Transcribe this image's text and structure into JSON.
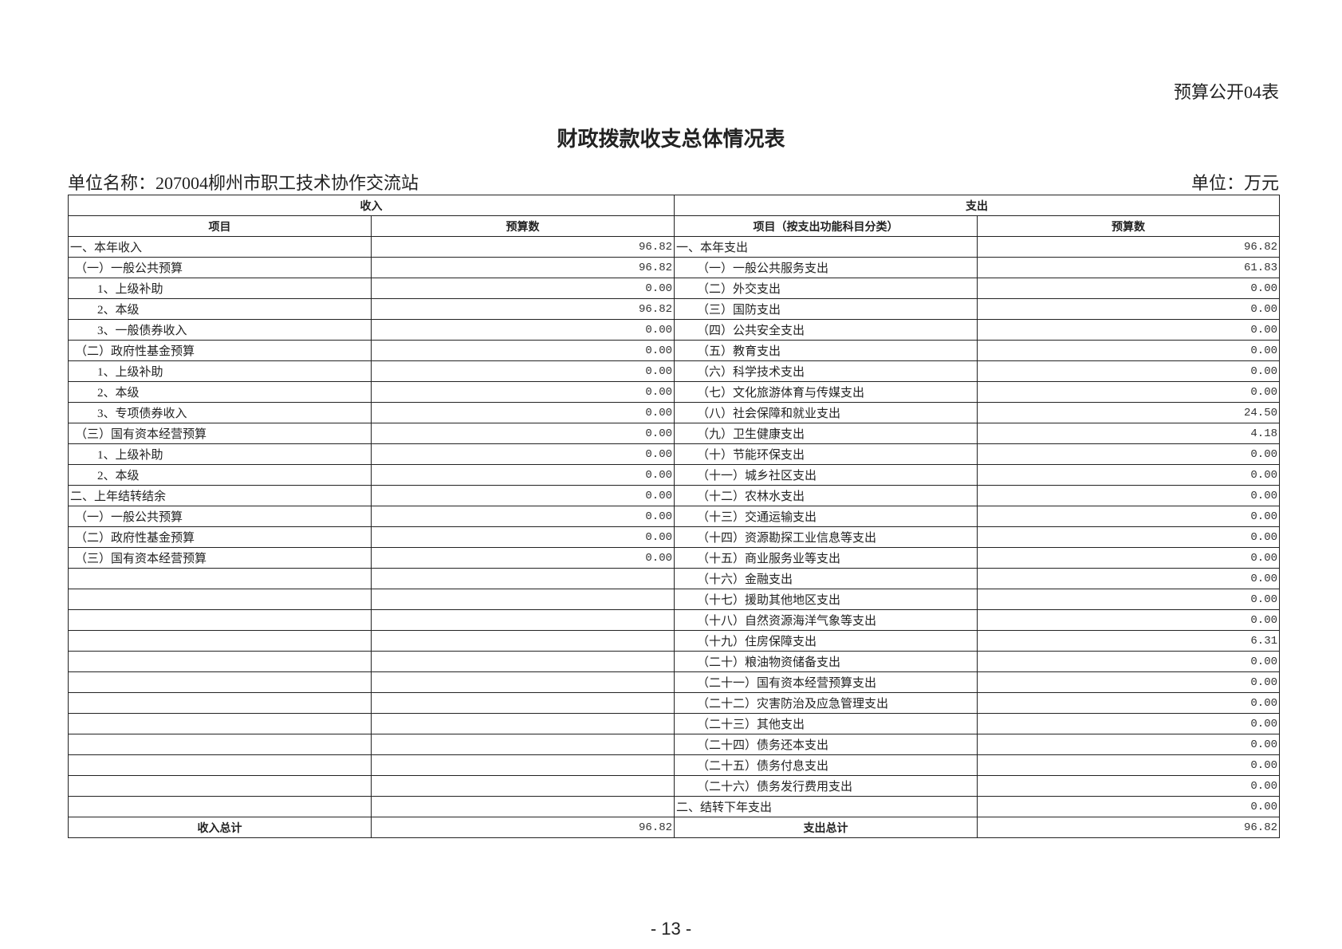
{
  "form_code": "预算公开04表",
  "title": "财政拨款收支总体情况表",
  "unit_name": "单位名称：207004柳州市职工技术协作交流站",
  "unit": "单位：万元",
  "headers": {
    "income": "收入",
    "expense": "支出",
    "income_item": "项目",
    "income_budget": "预算数",
    "expense_item": "项目（按支出功能科目分类）",
    "expense_budget": "预算数"
  },
  "rows": [
    {
      "in_item": "一、本年收入",
      "in_level": 0,
      "in_val": "96.82",
      "ex_item": "一、本年支出",
      "ex_level": 0,
      "ex_val": "96.82"
    },
    {
      "in_item": "（一）一般公共预算",
      "in_level": 1,
      "in_val": "96.82",
      "ex_item": "（一）一般公共服务支出",
      "ex_level": 1,
      "ex_val": "61.83"
    },
    {
      "in_item": "1、上级补助",
      "in_level": 2,
      "in_val": "0.00",
      "ex_item": "（二）外交支出",
      "ex_level": 1,
      "ex_val": "0.00"
    },
    {
      "in_item": "2、本级",
      "in_level": 2,
      "in_val": "96.82",
      "ex_item": "（三）国防支出",
      "ex_level": 1,
      "ex_val": "0.00"
    },
    {
      "in_item": "3、一般债券收入",
      "in_level": 2,
      "in_val": "0.00",
      "ex_item": "（四）公共安全支出",
      "ex_level": 1,
      "ex_val": "0.00"
    },
    {
      "in_item": "（二）政府性基金预算",
      "in_level": 1,
      "in_val": "0.00",
      "ex_item": "（五）教育支出",
      "ex_level": 1,
      "ex_val": "0.00"
    },
    {
      "in_item": "1、上级补助",
      "in_level": 2,
      "in_val": "0.00",
      "ex_item": "（六）科学技术支出",
      "ex_level": 1,
      "ex_val": "0.00"
    },
    {
      "in_item": "2、本级",
      "in_level": 2,
      "in_val": "0.00",
      "ex_item": "（七）文化旅游体育与传媒支出",
      "ex_level": 1,
      "ex_val": "0.00"
    },
    {
      "in_item": "3、专项债券收入",
      "in_level": 2,
      "in_val": "0.00",
      "ex_item": "（八）社会保障和就业支出",
      "ex_level": 1,
      "ex_val": "24.50"
    },
    {
      "in_item": "（三）国有资本经营预算",
      "in_level": 1,
      "in_val": "0.00",
      "ex_item": "（九）卫生健康支出",
      "ex_level": 1,
      "ex_val": "4.18"
    },
    {
      "in_item": "1、上级补助",
      "in_level": 2,
      "in_val": "0.00",
      "ex_item": "（十）节能环保支出",
      "ex_level": 1,
      "ex_val": "0.00"
    },
    {
      "in_item": "2、本级",
      "in_level": 2,
      "in_val": "0.00",
      "ex_item": "（十一）城乡社区支出",
      "ex_level": 1,
      "ex_val": "0.00"
    },
    {
      "in_item": "二、上年结转结余",
      "in_level": 0,
      "in_val": "0.00",
      "ex_item": "（十二）农林水支出",
      "ex_level": 1,
      "ex_val": "0.00"
    },
    {
      "in_item": "（一）一般公共预算",
      "in_level": 1,
      "in_val": "0.00",
      "ex_item": "（十三）交通运输支出",
      "ex_level": 1,
      "ex_val": "0.00"
    },
    {
      "in_item": "（二）政府性基金预算",
      "in_level": 1,
      "in_val": "0.00",
      "ex_item": "（十四）资源勘探工业信息等支出",
      "ex_level": 1,
      "ex_val": "0.00"
    },
    {
      "in_item": "（三）国有资本经营预算",
      "in_level": 1,
      "in_val": "0.00",
      "ex_item": "（十五）商业服务业等支出",
      "ex_level": 1,
      "ex_val": "0.00"
    },
    {
      "in_item": "",
      "in_level": 0,
      "in_val": "",
      "ex_item": "（十六）金融支出",
      "ex_level": 1,
      "ex_val": "0.00"
    },
    {
      "in_item": "",
      "in_level": 0,
      "in_val": "",
      "ex_item": "（十七）援助其他地区支出",
      "ex_level": 1,
      "ex_val": "0.00"
    },
    {
      "in_item": "",
      "in_level": 0,
      "in_val": "",
      "ex_item": "（十八）自然资源海洋气象等支出",
      "ex_level": 1,
      "ex_val": "0.00"
    },
    {
      "in_item": "",
      "in_level": 0,
      "in_val": "",
      "ex_item": "（十九）住房保障支出",
      "ex_level": 1,
      "ex_val": "6.31"
    },
    {
      "in_item": "",
      "in_level": 0,
      "in_val": "",
      "ex_item": "（二十）粮油物资储备支出",
      "ex_level": 1,
      "ex_val": "0.00"
    },
    {
      "in_item": "",
      "in_level": 0,
      "in_val": "",
      "ex_item": "（二十一）国有资本经营预算支出",
      "ex_level": 1,
      "ex_val": "0.00"
    },
    {
      "in_item": "",
      "in_level": 0,
      "in_val": "",
      "ex_item": "（二十二）灾害防治及应急管理支出",
      "ex_level": 1,
      "ex_val": "0.00"
    },
    {
      "in_item": "",
      "in_level": 0,
      "in_val": "",
      "ex_item": "（二十三）其他支出",
      "ex_level": 1,
      "ex_val": "0.00"
    },
    {
      "in_item": "",
      "in_level": 0,
      "in_val": "",
      "ex_item": "（二十四）债务还本支出",
      "ex_level": 1,
      "ex_val": "0.00"
    },
    {
      "in_item": "",
      "in_level": 0,
      "in_val": "",
      "ex_item": "（二十五）债务付息支出",
      "ex_level": 1,
      "ex_val": "0.00"
    },
    {
      "in_item": "",
      "in_level": 0,
      "in_val": "",
      "ex_item": "（二十六）债务发行费用支出",
      "ex_level": 1,
      "ex_val": "0.00"
    },
    {
      "in_item": "",
      "in_level": 0,
      "in_val": "",
      "ex_item": "二、结转下年支出",
      "ex_level": 0,
      "ex_val": "0.00"
    }
  ],
  "totals": {
    "income_label": "收入总计",
    "income_value": "96.82",
    "expense_label": "支出总计",
    "expense_value": "96.82"
  },
  "page_number": "- 13 -"
}
